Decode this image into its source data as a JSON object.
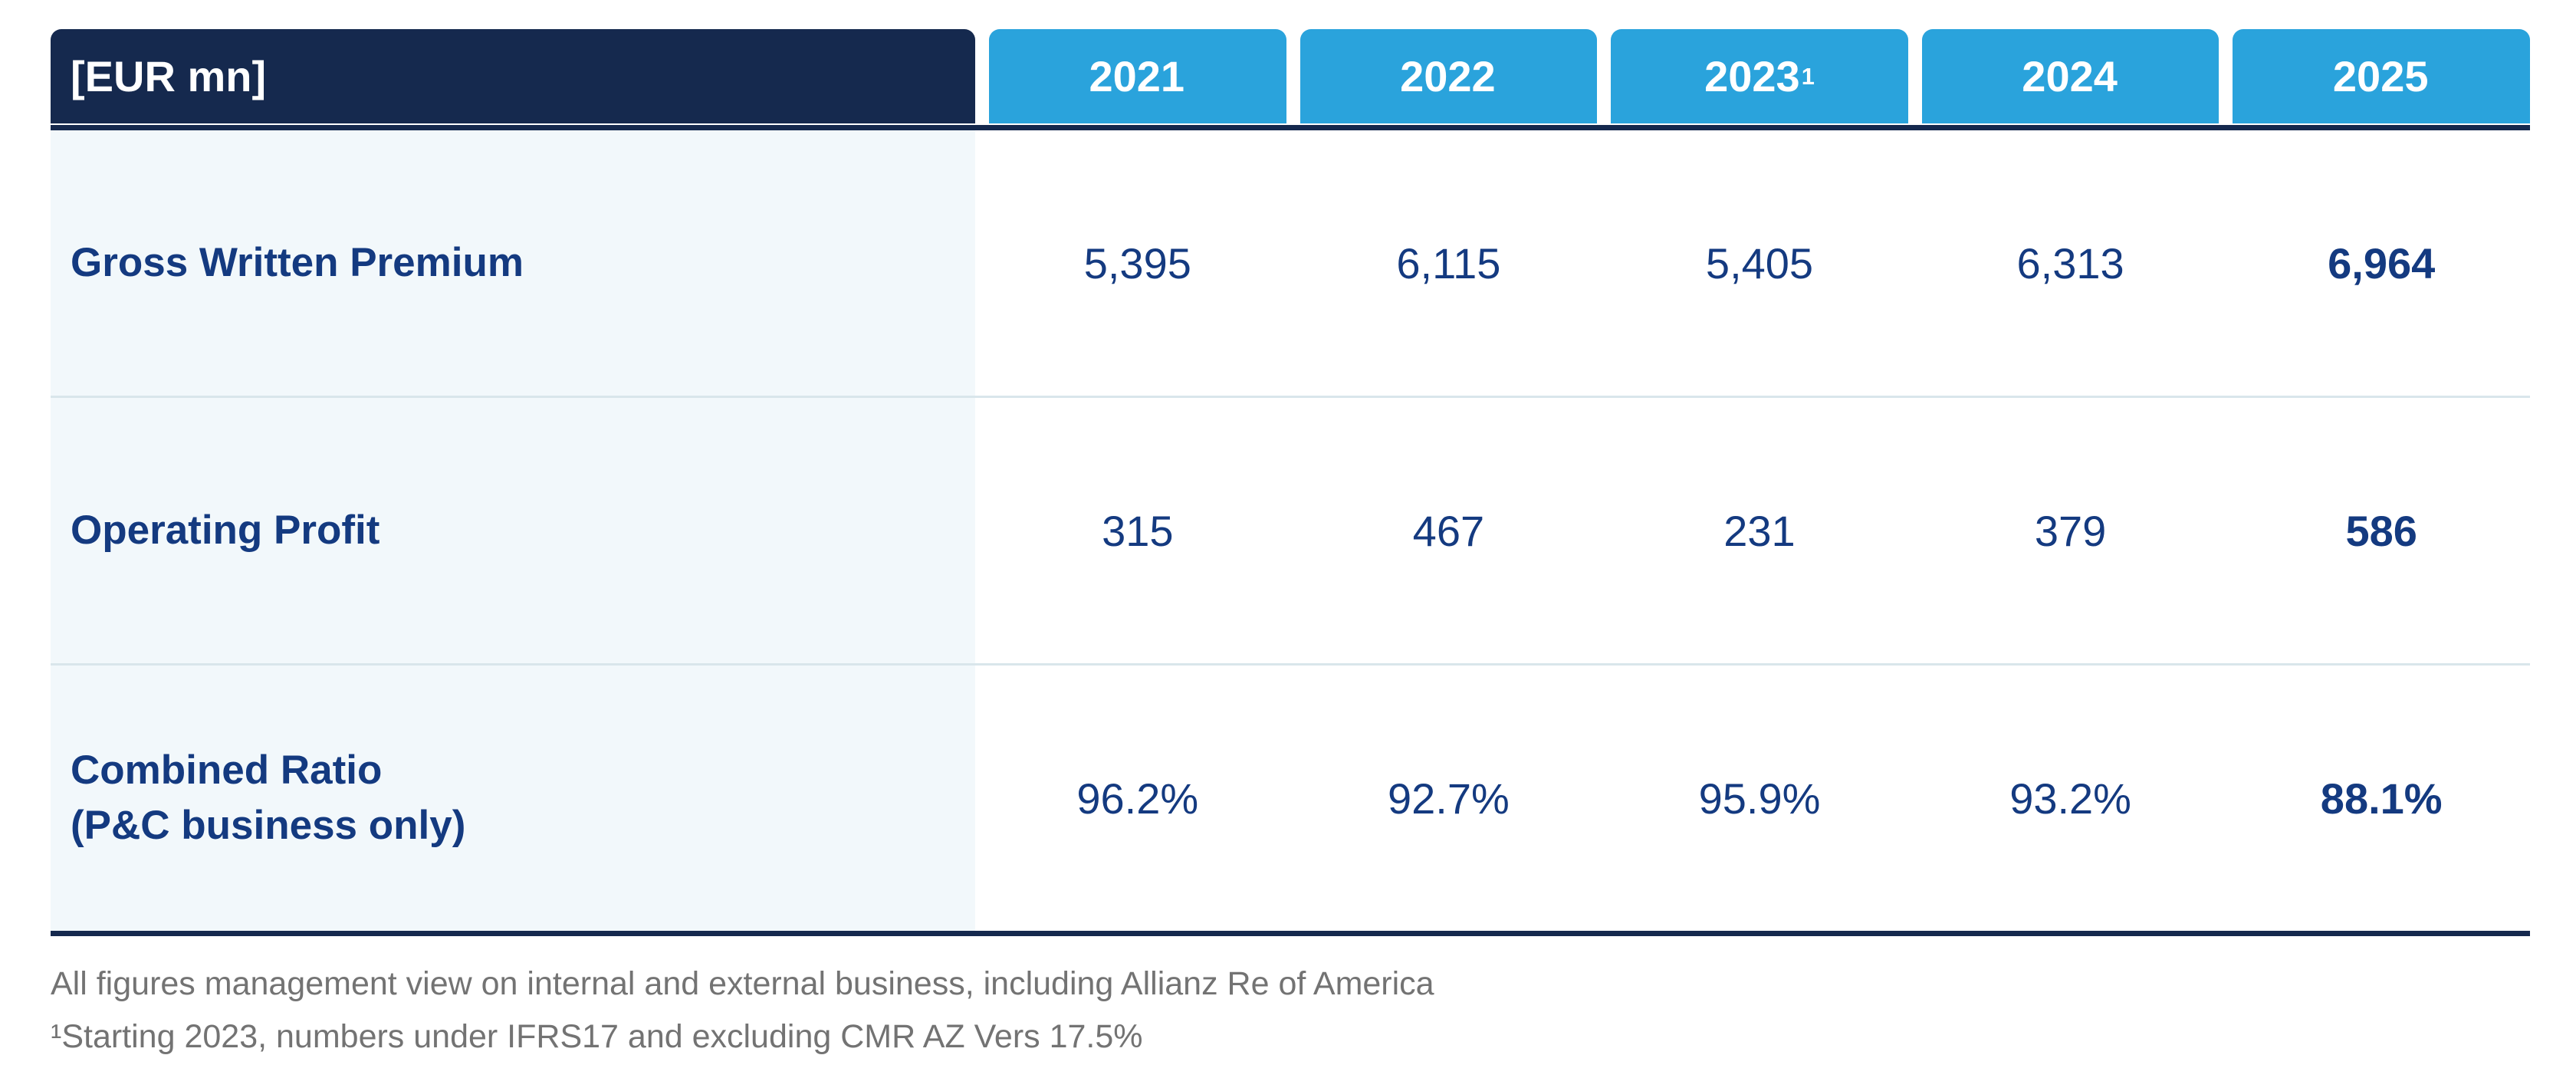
{
  "table": {
    "unit_label": "[EUR mn]",
    "columns": [
      {
        "label": "2021",
        "sup": ""
      },
      {
        "label": "2022",
        "sup": ""
      },
      {
        "label": "2023",
        "sup": "1"
      },
      {
        "label": "2024",
        "sup": ""
      },
      {
        "label": "2025",
        "sup": ""
      }
    ],
    "rows": [
      {
        "label": "Gross Written Premium",
        "label2": "",
        "values": [
          "5,395",
          "6,115",
          "5,405",
          "6,313",
          "6,964"
        ]
      },
      {
        "label": "Operating Profit",
        "label2": "",
        "values": [
          "315",
          "467",
          "231",
          "379",
          "586"
        ]
      },
      {
        "label": "Combined Ratio",
        "label2": "(P&C business only)",
        "values": [
          "96.2%",
          "92.7%",
          "95.9%",
          "93.2%",
          "88.1%"
        ]
      }
    ],
    "highlight_column": "2025"
  },
  "footnotes": {
    "line1": "All figures management view on internal and external business, including Allianz Re of America",
    "line2": "¹Starting 2023, numbers under IFRS17 and excluding CMR AZ Vers 17.5%"
  },
  "colors": {
    "header_navy": "#15294E",
    "header_teal": "#2AA3DC",
    "row_label_bg": "#F2F8FB",
    "row_separator": "#D9E6EB",
    "text_blue": "#143A80",
    "footnote_gray": "#737373"
  }
}
